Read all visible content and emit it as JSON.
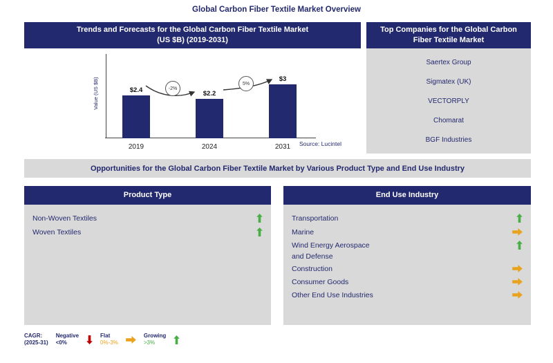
{
  "page_title": "Global Carbon Fiber Textile Market Overview",
  "trends_panel": {
    "title_line1": "Trends and Forecasts for the Global Carbon Fiber Textile Market",
    "title_line2": "(US $B) (2019-2031)",
    "source": "Source: Lucintel"
  },
  "chart_data": {
    "type": "bar",
    "categories": [
      "2019",
      "2024",
      "2031"
    ],
    "values": [
      2.4,
      2.2,
      3
    ],
    "bar_labels": [
      "$2.4",
      "$2.2",
      "$3"
    ],
    "ylabel": "Value (US $B)",
    "ylim": [
      0,
      3.5
    ],
    "grid": false,
    "growth_annotations": [
      {
        "between": "2019-2024",
        "label": "-2%"
      },
      {
        "between": "2024-2031",
        "label": "5%"
      }
    ]
  },
  "top_companies": {
    "title": "Top Companies for the Global Carbon Fiber Textile Market",
    "companies": [
      "Saertex Group",
      "Sigmatex (UK)",
      "VECTORPLY",
      "Chomarat",
      "BGF Industries"
    ]
  },
  "opportunities_banner": "Opportunities for the Global Carbon Fiber Textile Market by Various Product Type and End Use Industry",
  "product_type_panel": {
    "title": "Product Type",
    "items": [
      {
        "label": "Non-Woven Textiles",
        "trend": "up"
      },
      {
        "label": "Woven Textiles",
        "trend": "up"
      }
    ]
  },
  "end_use_panel": {
    "title": "End Use Industry",
    "items": [
      {
        "label": "Transportation",
        "trend": "up"
      },
      {
        "label": "Marine",
        "trend": "flat"
      },
      {
        "label": "Wind Energy  Aerospace\nand Defense",
        "trend": "up"
      },
      {
        "label": "Construction",
        "trend": "flat"
      },
      {
        "label": "Consumer Goods",
        "trend": "flat"
      },
      {
        "label": "Other End Use Industries",
        "trend": "flat"
      }
    ]
  },
  "legend": {
    "cagr_label": "CAGR:",
    "cagr_period": "(2025-31)",
    "negative_label": "Negative",
    "negative_range": "<0%",
    "flat_label": "Flat",
    "flat_range": "0%-3%",
    "growing_label": "Growing",
    "growing_range": ">3%"
  },
  "colors": {
    "navy": "#23296e",
    "panel_gray": "#d9d9d9",
    "green": "#4aae46",
    "yellow": "#e8a21d",
    "red": "#c00000"
  }
}
